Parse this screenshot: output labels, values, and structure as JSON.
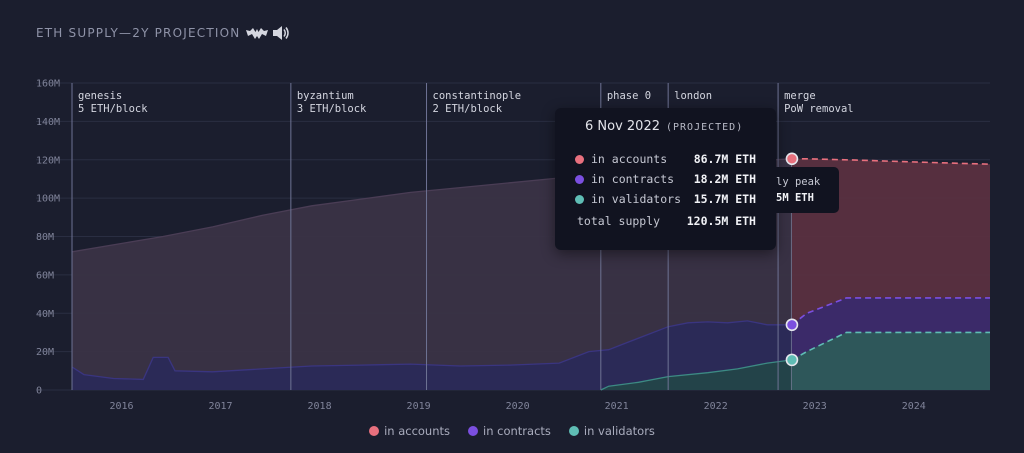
{
  "header": {
    "title": "ETH SUPPLY—2Y PROJECTION"
  },
  "chart_data": {
    "type": "area",
    "x_start": 2015.58,
    "x_end": 2024.85,
    "ylim": [
      0,
      160
    ],
    "y_ticks": [
      "0",
      "20M",
      "40M",
      "60M",
      "80M",
      "100M",
      "120M",
      "140M",
      "160M"
    ],
    "y_tick_values": [
      0,
      20,
      40,
      60,
      80,
      100,
      120,
      140,
      160
    ],
    "x_ticks": [
      "2016",
      "2017",
      "2018",
      "2019",
      "2020",
      "2021",
      "2022",
      "2023",
      "2024"
    ],
    "x_tick_values": [
      2016.08,
      2017.08,
      2018.08,
      2019.08,
      2020.08,
      2021.08,
      2022.08,
      2023.08,
      2024.08
    ],
    "projection_start": 2022.85,
    "eras": [
      {
        "x": 2015.58,
        "name": "genesis",
        "reward": "5 ETH/block"
      },
      {
        "x": 2017.79,
        "name": "byzantium",
        "reward": "3 ETH/block"
      },
      {
        "x": 2019.16,
        "name": "constantinople",
        "reward": "2 ETH/block"
      },
      {
        "x": 2020.92,
        "name": "phase 0",
        "reward": ""
      },
      {
        "x": 2021.6,
        "name": "london",
        "reward": ""
      },
      {
        "x": 2022.71,
        "name": "merge",
        "reward": "PoW removal"
      }
    ],
    "series": [
      {
        "name": "in accounts",
        "color": "#e8707e",
        "points": [
          [
            2015.58,
            72.0
          ],
          [
            2016.5,
            80.0
          ],
          [
            2017.0,
            85.0
          ],
          [
            2017.5,
            91.0
          ],
          [
            2018.0,
            96.0
          ],
          [
            2018.5,
            99.5
          ],
          [
            2019.0,
            103.0
          ],
          [
            2019.5,
            105.5
          ],
          [
            2020.0,
            108.0
          ],
          [
            2020.5,
            110.5
          ],
          [
            2021.0,
            113.0
          ],
          [
            2021.5,
            116.0
          ],
          [
            2022.0,
            118.0
          ],
          [
            2022.5,
            119.5
          ],
          [
            2022.85,
            120.5
          ],
          [
            2023.0,
            120.5
          ],
          [
            2023.5,
            119.8
          ],
          [
            2024.0,
            119.0
          ],
          [
            2024.5,
            118.2
          ],
          [
            2024.85,
            117.7
          ]
        ]
      },
      {
        "name": "in contracts",
        "color": "#7b4fe0",
        "points": [
          [
            2015.58,
            12.0
          ],
          [
            2015.7,
            8.0
          ],
          [
            2016.0,
            6.0
          ],
          [
            2016.3,
            5.5
          ],
          [
            2016.4,
            17.0
          ],
          [
            2016.55,
            17.0
          ],
          [
            2016.62,
            10.0
          ],
          [
            2017.0,
            9.5
          ],
          [
            2017.5,
            11.0
          ],
          [
            2018.0,
            12.5
          ],
          [
            2018.5,
            13.0
          ],
          [
            2019.0,
            13.5
          ],
          [
            2019.5,
            12.5
          ],
          [
            2020.0,
            13.0
          ],
          [
            2020.5,
            14.0
          ],
          [
            2020.8,
            20.0
          ],
          [
            2021.0,
            21.0
          ],
          [
            2021.2,
            25.0
          ],
          [
            2021.4,
            29.0
          ],
          [
            2021.6,
            33.0
          ],
          [
            2021.8,
            35.0
          ],
          [
            2022.0,
            35.5
          ],
          [
            2022.2,
            35.0
          ],
          [
            2022.4,
            36.0
          ],
          [
            2022.6,
            34.0
          ],
          [
            2022.85,
            34.0
          ],
          [
            2023.0,
            40.0
          ],
          [
            2023.4,
            48.0
          ],
          [
            2023.8,
            48.0
          ],
          [
            2024.85,
            48.0
          ]
        ]
      },
      {
        "name": "in validators",
        "color": "#5fbdb5",
        "points": [
          [
            2020.92,
            0.0
          ],
          [
            2021.0,
            2.0
          ],
          [
            2021.3,
            4.0
          ],
          [
            2021.6,
            7.0
          ],
          [
            2022.0,
            9.0
          ],
          [
            2022.3,
            11.0
          ],
          [
            2022.6,
            14.0
          ],
          [
            2022.85,
            15.7
          ],
          [
            2023.0,
            20.0
          ],
          [
            2023.4,
            30.0
          ],
          [
            2023.8,
            30.0
          ],
          [
            2024.85,
            30.0
          ]
        ]
      }
    ],
    "tooltip": {
      "date": "6 Nov 2022",
      "tag": "(PROJECTED)",
      "rows": [
        {
          "label": "in accounts",
          "value": "86.7M ETH",
          "color": "#e8707e"
        },
        {
          "label": "in contracts",
          "value": "18.2M ETH",
          "color": "#7b4fe0"
        },
        {
          "label": "in validators",
          "value": "15.7M ETH",
          "color": "#5fbdb5"
        }
      ],
      "total_label": "total supply",
      "total_value": "120.5M ETH"
    },
    "peak_label": {
      "line1": "ly peak",
      "line2": "5M ETH"
    },
    "legend": [
      {
        "label": "in accounts",
        "color": "#e8707e"
      },
      {
        "label": "in contracts",
        "color": "#7b4fe0"
      },
      {
        "label": "in validators",
        "color": "#5fbdb5"
      }
    ]
  }
}
